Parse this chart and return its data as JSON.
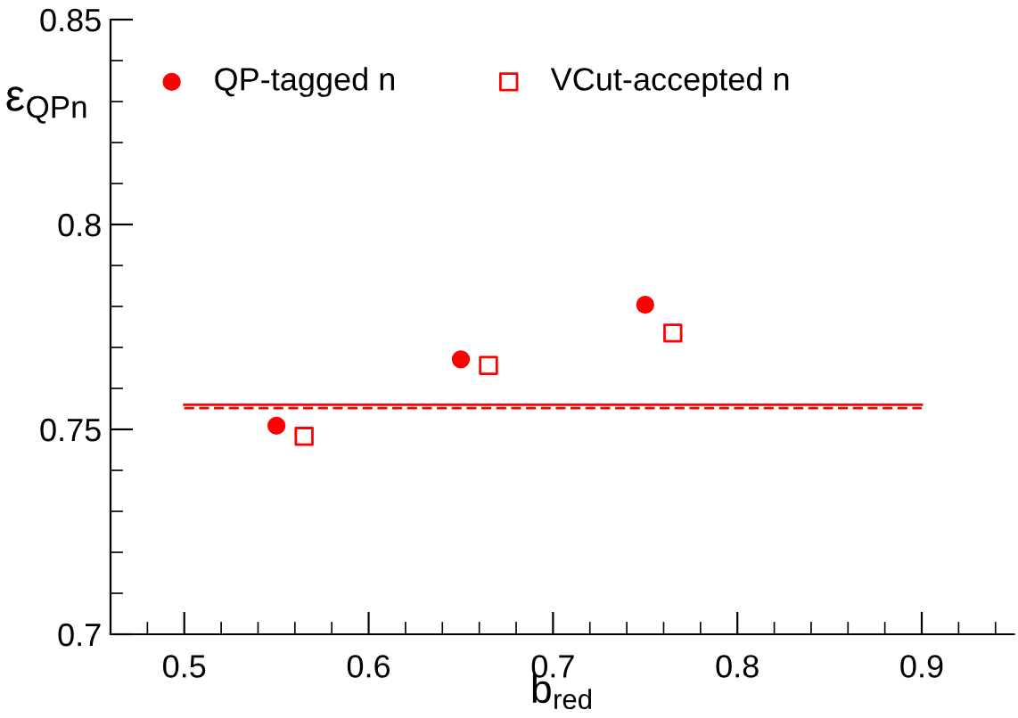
{
  "chart_data": {
    "type": "scatter",
    "xlabel": "b$_{red}$",
    "ylabel": "ε$_{QPn}$",
    "xlim": [
      0.46,
      0.95
    ],
    "xticks": [
      0.5,
      0.6,
      0.7,
      0.8,
      0.9
    ],
    "ylim": [
      0.7,
      0.85
    ],
    "yticks": [
      0.7,
      0.75,
      0.8,
      0.85
    ],
    "grid": false,
    "legend": "top left",
    "series": [
      {
        "name": "QP-tagged n",
        "color": "#ff0000",
        "marker": "circle",
        "x": [
          0.55,
          0.65,
          0.75
        ],
        "values": [
          0.7509,
          0.7671,
          0.7804
        ]
      },
      {
        "name": "VCut-accepted n",
        "color": "#ff0000",
        "marker": "square",
        "x": [
          0.565,
          0.665,
          0.765
        ],
        "values": [
          0.7483,
          0.7656,
          0.7735
        ]
      },
      {
        "type": "line",
        "color": "#ff0000",
        "line_style": "solid",
        "marker": "none",
        "x": [
          0.5,
          0.9
        ],
        "values": [
          0.756,
          0.756
        ]
      },
      {
        "type": "line",
        "color": "#ff0000",
        "line_style": "dashed",
        "marker": "none",
        "x": [
          0.5,
          0.9
        ],
        "values": [
          0.7552,
          0.7552
        ]
      }
    ]
  }
}
